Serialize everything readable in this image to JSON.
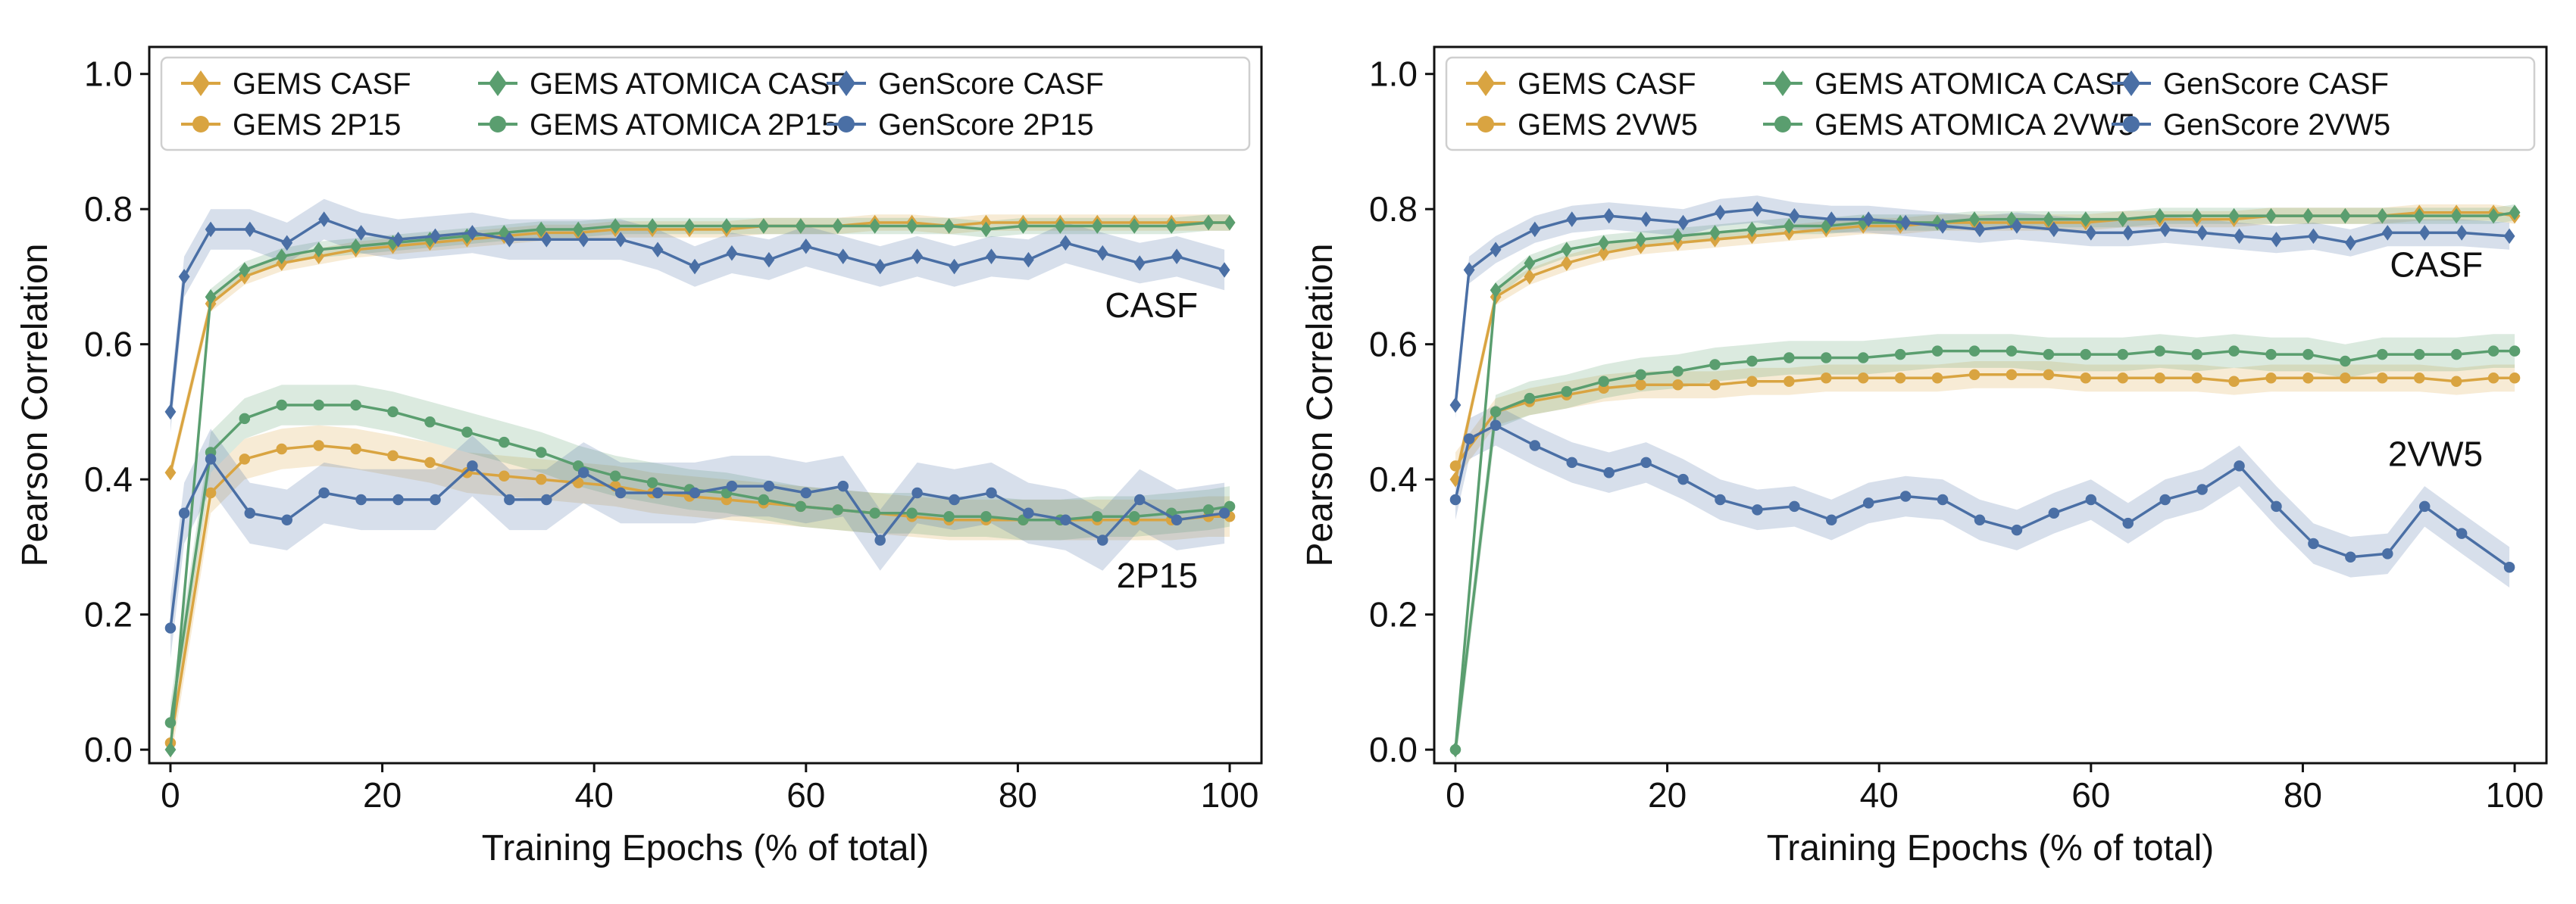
{
  "colors": {
    "gems": "#D9A441",
    "atomica": "#5A9E6F",
    "genscore": "#4A6FA5"
  },
  "chart_data": [
    {
      "type": "line",
      "xlabel": "Training Epochs (% of total)",
      "ylabel": "Pearson Correlation",
      "xlim": [
        -2,
        103
      ],
      "ylim": [
        -0.02,
        1.04
      ],
      "xticks": [
        0,
        20,
        40,
        60,
        80,
        100
      ],
      "yticks": [
        0.0,
        0.2,
        0.4,
        0.6,
        0.8,
        1.0
      ],
      "xtick_labels": [
        "0",
        "20",
        "40",
        "60",
        "80",
        "100"
      ],
      "ytick_labels": [
        "0.0",
        "0.2",
        "0.4",
        "0.6",
        "0.8",
        "1.0"
      ],
      "legend": [
        "GEMS CASF",
        "GEMS 2P15",
        "GEMS ATOMICA CASF",
        "GEMS ATOMICA 2P15",
        "GenScore CASF",
        "GenScore 2P15"
      ],
      "annotations": [
        {
          "text": "CASF",
          "x": 97,
          "y": 0.64
        },
        {
          "text": "2P15",
          "x": 97,
          "y": 0.24
        }
      ],
      "series": [
        {
          "name": "GEMS CASF",
          "color": "gems",
          "marker": "diamond",
          "band": 0.012,
          "x": [
            0,
            3.8,
            7,
            10.5,
            14,
            17.5,
            21,
            24.5,
            28,
            31.5,
            35,
            38.5,
            42,
            45.5,
            49,
            52.5,
            56,
            59.5,
            63,
            66.5,
            70,
            73.5,
            77,
            80.5,
            84,
            87.5,
            91,
            94.5,
            98,
            100
          ],
          "y": [
            0.41,
            0.66,
            0.7,
            0.72,
            0.73,
            0.74,
            0.745,
            0.75,
            0.755,
            0.76,
            0.765,
            0.765,
            0.77,
            0.77,
            0.77,
            0.77,
            0.775,
            0.775,
            0.775,
            0.78,
            0.78,
            0.775,
            0.78,
            0.78,
            0.78,
            0.78,
            0.78,
            0.78,
            0.78,
            0.78
          ]
        },
        {
          "name": "GEMS 2P15",
          "color": "gems",
          "marker": "circle",
          "band": 0.03,
          "x": [
            0,
            3.8,
            7,
            10.5,
            14,
            17.5,
            21,
            24.5,
            28,
            31.5,
            35,
            38.5,
            42,
            45.5,
            49,
            52.5,
            56,
            59.5,
            63,
            66.5,
            70,
            73.5,
            77,
            80.5,
            84,
            87.5,
            91,
            94.5,
            98,
            100
          ],
          "y": [
            0.01,
            0.38,
            0.43,
            0.445,
            0.45,
            0.445,
            0.435,
            0.425,
            0.41,
            0.405,
            0.4,
            0.395,
            0.39,
            0.38,
            0.375,
            0.37,
            0.365,
            0.36,
            0.355,
            0.35,
            0.345,
            0.34,
            0.34,
            0.34,
            0.34,
            0.34,
            0.34,
            0.34,
            0.345,
            0.345
          ]
        },
        {
          "name": "GEMS ATOMICA CASF",
          "color": "atomica",
          "marker": "diamond",
          "band": 0.012,
          "x": [
            0,
            3.8,
            7,
            10.5,
            14,
            17.5,
            21,
            24.5,
            28,
            31.5,
            35,
            38.5,
            42,
            45.5,
            49,
            52.5,
            56,
            59.5,
            63,
            66.5,
            70,
            73.5,
            77,
            80.5,
            84,
            87.5,
            91,
            94.5,
            98,
            100
          ],
          "y": [
            0.0,
            0.67,
            0.71,
            0.73,
            0.74,
            0.745,
            0.75,
            0.755,
            0.76,
            0.765,
            0.77,
            0.77,
            0.775,
            0.775,
            0.775,
            0.775,
            0.775,
            0.775,
            0.775,
            0.775,
            0.775,
            0.775,
            0.77,
            0.775,
            0.775,
            0.775,
            0.775,
            0.775,
            0.78,
            0.78
          ]
        },
        {
          "name": "GEMS ATOMICA 2P15",
          "color": "atomica",
          "marker": "circle",
          "band": 0.03,
          "x": [
            0,
            3.8,
            7,
            10.5,
            14,
            17.5,
            21,
            24.5,
            28,
            31.5,
            35,
            38.5,
            42,
            45.5,
            49,
            52.5,
            56,
            59.5,
            63,
            66.5,
            70,
            73.5,
            77,
            80.5,
            84,
            87.5,
            91,
            94.5,
            98,
            100
          ],
          "y": [
            0.04,
            0.44,
            0.49,
            0.51,
            0.51,
            0.51,
            0.5,
            0.485,
            0.47,
            0.455,
            0.44,
            0.42,
            0.405,
            0.395,
            0.385,
            0.38,
            0.37,
            0.36,
            0.355,
            0.35,
            0.35,
            0.345,
            0.345,
            0.34,
            0.34,
            0.345,
            0.345,
            0.35,
            0.355,
            0.36
          ]
        },
        {
          "name": "GenScore CASF",
          "color": "genscore",
          "marker": "diamond",
          "band": 0.03,
          "x": [
            0,
            1.3,
            3.8,
            7.5,
            11,
            14.5,
            18,
            21.5,
            25,
            28.5,
            32,
            35.5,
            39,
            42.5,
            46,
            49.5,
            53,
            56.5,
            60,
            63.5,
            67,
            70.5,
            74,
            77.5,
            81,
            84.5,
            88,
            91.5,
            95,
            99.5
          ],
          "y": [
            0.5,
            0.7,
            0.77,
            0.77,
            0.75,
            0.785,
            0.765,
            0.755,
            0.76,
            0.765,
            0.755,
            0.755,
            0.755,
            0.755,
            0.74,
            0.715,
            0.735,
            0.725,
            0.745,
            0.73,
            0.715,
            0.73,
            0.715,
            0.73,
            0.725,
            0.75,
            0.735,
            0.72,
            0.73,
            0.71
          ]
        },
        {
          "name": "GenScore 2P15",
          "color": "genscore",
          "marker": "circle",
          "band": 0.045,
          "x": [
            0,
            1.3,
            3.8,
            7.5,
            11,
            14.5,
            18,
            21.5,
            25,
            28.5,
            32,
            35.5,
            39,
            42.5,
            46,
            49.5,
            53,
            56.5,
            60,
            63.5,
            67,
            70.5,
            74,
            77.5,
            81,
            84.5,
            88,
            91.5,
            95,
            99.5
          ],
          "y": [
            0.18,
            0.35,
            0.43,
            0.35,
            0.34,
            0.38,
            0.37,
            0.37,
            0.37,
            0.42,
            0.37,
            0.37,
            0.41,
            0.38,
            0.38,
            0.38,
            0.39,
            0.39,
            0.38,
            0.39,
            0.31,
            0.38,
            0.37,
            0.38,
            0.35,
            0.34,
            0.31,
            0.37,
            0.34,
            0.35
          ]
        }
      ]
    },
    {
      "type": "line",
      "xlabel": "Training Epochs (% of total)",
      "ylabel": "Pearson Correlation",
      "xlim": [
        -2,
        103
      ],
      "ylim": [
        -0.02,
        1.04
      ],
      "xticks": [
        0,
        20,
        40,
        60,
        80,
        100
      ],
      "yticks": [
        0.0,
        0.2,
        0.4,
        0.6,
        0.8,
        1.0
      ],
      "xtick_labels": [
        "0",
        "20",
        "40",
        "60",
        "80",
        "100"
      ],
      "ytick_labels": [
        "0.0",
        "0.2",
        "0.4",
        "0.6",
        "0.8",
        "1.0"
      ],
      "legend": [
        "GEMS CASF",
        "GEMS 2VW5",
        "GEMS ATOMICA CASF",
        "GEMS ATOMICA 2VW5",
        "GenScore CASF",
        "GenScore 2VW5"
      ],
      "annotations": [
        {
          "text": "CASF",
          "x": 97,
          "y": 0.7
        },
        {
          "text": "2VW5",
          "x": 97,
          "y": 0.42
        }
      ],
      "series": [
        {
          "name": "GEMS CASF",
          "color": "gems",
          "marker": "diamond",
          "band": 0.012,
          "x": [
            0,
            3.8,
            7,
            10.5,
            14,
            17.5,
            21,
            24.5,
            28,
            31.5,
            35,
            38.5,
            42,
            45.5,
            49,
            52.5,
            56,
            59.5,
            63,
            66.5,
            70,
            73.5,
            77,
            80.5,
            84,
            87.5,
            91,
            94.5,
            98,
            100
          ],
          "y": [
            0.4,
            0.67,
            0.7,
            0.72,
            0.735,
            0.745,
            0.75,
            0.755,
            0.76,
            0.765,
            0.77,
            0.775,
            0.775,
            0.78,
            0.78,
            0.78,
            0.78,
            0.78,
            0.785,
            0.785,
            0.785,
            0.785,
            0.79,
            0.79,
            0.79,
            0.79,
            0.795,
            0.795,
            0.795,
            0.79
          ]
        },
        {
          "name": "GEMS 2VW5",
          "color": "gems",
          "marker": "circle",
          "band": 0.02,
          "x": [
            0,
            3.8,
            7,
            10.5,
            14,
            17.5,
            21,
            24.5,
            28,
            31.5,
            35,
            38.5,
            42,
            45.5,
            49,
            52.5,
            56,
            59.5,
            63,
            66.5,
            70,
            73.5,
            77,
            80.5,
            84,
            87.5,
            91,
            94.5,
            98,
            100
          ],
          "y": [
            0.42,
            0.5,
            0.515,
            0.525,
            0.535,
            0.54,
            0.54,
            0.54,
            0.545,
            0.545,
            0.55,
            0.55,
            0.55,
            0.55,
            0.555,
            0.555,
            0.555,
            0.55,
            0.55,
            0.55,
            0.55,
            0.545,
            0.55,
            0.55,
            0.55,
            0.55,
            0.55,
            0.545,
            0.55,
            0.55
          ]
        },
        {
          "name": "GEMS ATOMICA CASF",
          "color": "atomica",
          "marker": "diamond",
          "band": 0.012,
          "x": [
            0,
            3.8,
            7,
            10.5,
            14,
            17.5,
            21,
            24.5,
            28,
            31.5,
            35,
            38.5,
            42,
            45.5,
            49,
            52.5,
            56,
            59.5,
            63,
            66.5,
            70,
            73.5,
            77,
            80.5,
            84,
            87.5,
            91,
            94.5,
            98,
            100
          ],
          "y": [
            0.0,
            0.68,
            0.72,
            0.74,
            0.75,
            0.755,
            0.76,
            0.765,
            0.77,
            0.775,
            0.775,
            0.78,
            0.78,
            0.78,
            0.785,
            0.785,
            0.785,
            0.785,
            0.785,
            0.79,
            0.79,
            0.79,
            0.79,
            0.79,
            0.79,
            0.79,
            0.79,
            0.79,
            0.79,
            0.795
          ]
        },
        {
          "name": "GEMS ATOMICA 2VW5",
          "color": "atomica",
          "marker": "circle",
          "band": 0.025,
          "x": [
            0,
            3.8,
            7,
            10.5,
            14,
            17.5,
            21,
            24.5,
            28,
            31.5,
            35,
            38.5,
            42,
            45.5,
            49,
            52.5,
            56,
            59.5,
            63,
            66.5,
            70,
            73.5,
            77,
            80.5,
            84,
            87.5,
            91,
            94.5,
            98,
            100
          ],
          "y": [
            0.0,
            0.5,
            0.52,
            0.53,
            0.545,
            0.555,
            0.56,
            0.57,
            0.575,
            0.58,
            0.58,
            0.58,
            0.585,
            0.59,
            0.59,
            0.59,
            0.585,
            0.585,
            0.585,
            0.59,
            0.585,
            0.59,
            0.585,
            0.585,
            0.575,
            0.585,
            0.585,
            0.585,
            0.59,
            0.59
          ]
        },
        {
          "name": "GenScore CASF",
          "color": "genscore",
          "marker": "diamond",
          "band": 0.02,
          "x": [
            0,
            1.3,
            3.8,
            7.5,
            11,
            14.5,
            18,
            21.5,
            25,
            28.5,
            32,
            35.5,
            39,
            42.5,
            46,
            49.5,
            53,
            56.5,
            60,
            63.5,
            67,
            70.5,
            74,
            77.5,
            81,
            84.5,
            88,
            91.5,
            95,
            99.5
          ],
          "y": [
            0.51,
            0.71,
            0.74,
            0.77,
            0.785,
            0.79,
            0.785,
            0.78,
            0.795,
            0.8,
            0.79,
            0.785,
            0.785,
            0.78,
            0.775,
            0.77,
            0.775,
            0.77,
            0.765,
            0.765,
            0.77,
            0.765,
            0.76,
            0.755,
            0.76,
            0.75,
            0.765,
            0.765,
            0.765,
            0.76
          ]
        },
        {
          "name": "GenScore 2VW5",
          "color": "genscore",
          "marker": "circle",
          "band": 0.03,
          "x": [
            0,
            1.3,
            3.8,
            7.5,
            11,
            14.5,
            18,
            21.5,
            25,
            28.5,
            32,
            35.5,
            39,
            42.5,
            46,
            49.5,
            53,
            56.5,
            60,
            63.5,
            67,
            70.5,
            74,
            77.5,
            81,
            84.5,
            88,
            91.5,
            95,
            99.5
          ],
          "y": [
            0.37,
            0.46,
            0.48,
            0.45,
            0.425,
            0.41,
            0.425,
            0.4,
            0.37,
            0.355,
            0.36,
            0.34,
            0.365,
            0.375,
            0.37,
            0.34,
            0.325,
            0.35,
            0.37,
            0.335,
            0.37,
            0.385,
            0.42,
            0.36,
            0.305,
            0.285,
            0.29,
            0.36,
            0.32,
            0.27
          ]
        }
      ]
    }
  ]
}
